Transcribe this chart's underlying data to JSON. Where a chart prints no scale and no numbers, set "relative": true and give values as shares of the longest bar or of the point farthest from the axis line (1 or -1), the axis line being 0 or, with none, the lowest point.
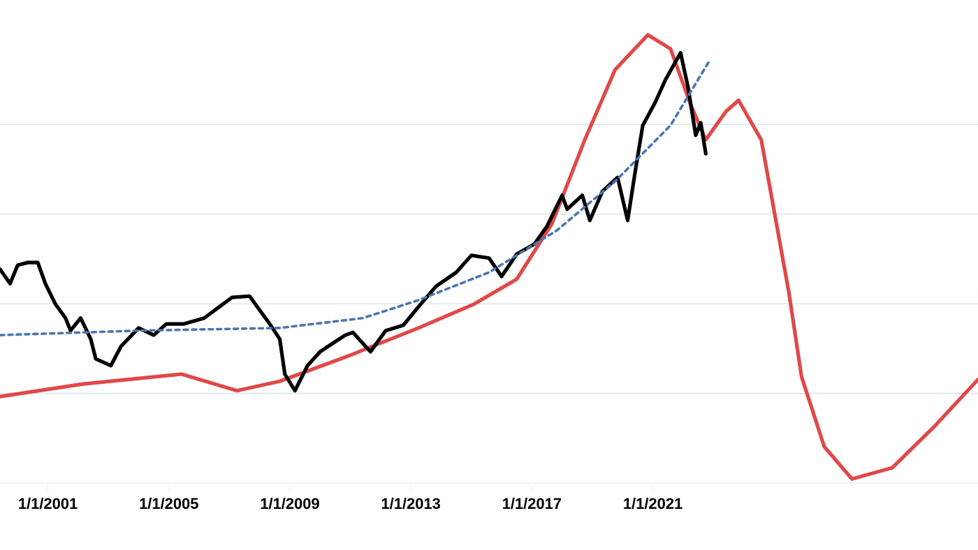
{
  "chart_data": {
    "type": "line",
    "relative": true,
    "grid": "y",
    "marker": "none",
    "xlim": [
      "1999-06",
      "2031-10"
    ],
    "xticks": [
      {
        "value": "2001-01-01",
        "label": "1/1/2001"
      },
      {
        "value": "2005-01-01",
        "label": "1/1/2005"
      },
      {
        "value": "2009-01-01",
        "label": "1/1/2009"
      },
      {
        "value": "2013-01-01",
        "label": "1/1/2013"
      },
      {
        "value": "2017-01-01",
        "label": "1/1/2017"
      },
      {
        "value": "2021-01-01",
        "label": "1/1/2021"
      }
    ],
    "series": [
      {
        "color": "#e04848",
        "line_style": "solid",
        "x": [
          "1999-06",
          "2002-03",
          "2005-06",
          "2007-04",
          "2008-09",
          "2010-12",
          "2013-04",
          "2015-02",
          "2016-07",
          "2017-09",
          "2018-10",
          "2019-10",
          "2020-11",
          "2021-08",
          "2022-04",
          "2022-10",
          "2023-06",
          "2023-11",
          "2024-08",
          "2025-01",
          "2025-07",
          "2025-12",
          "2026-09",
          "2027-08",
          "2028-12",
          "2030-05",
          "2031-10"
        ],
        "values": [
          0.193,
          0.221,
          0.243,
          0.206,
          0.227,
          0.283,
          0.346,
          0.399,
          0.455,
          0.579,
          0.766,
          0.922,
          1.0,
          0.969,
          0.844,
          0.766,
          0.829,
          0.854,
          0.766,
          0.611,
          0.424,
          0.237,
          0.081,
          0.009,
          0.034,
          0.128,
          0.231
        ]
      },
      {
        "color": "#000000",
        "line_style": "solid",
        "x": [
          "1999-06",
          "1999-10",
          "2000-01",
          "2000-05",
          "2000-09",
          "2000-12",
          "2001-04",
          "2001-08",
          "2001-10",
          "2002-02",
          "2002-06",
          "2002-08",
          "2003-02",
          "2003-06",
          "2004-01",
          "2004-07",
          "2004-12",
          "2005-07",
          "2006-03",
          "2006-09",
          "2007-02",
          "2007-09",
          "2008-01",
          "2008-05",
          "2008-09",
          "2008-11",
          "2009-03",
          "2009-08",
          "2010-01",
          "2010-05",
          "2010-11",
          "2011-02",
          "2011-09",
          "2012-03",
          "2012-10",
          "2013-04",
          "2013-11",
          "2014-07",
          "2015-01",
          "2015-08",
          "2016-01",
          "2016-07",
          "2017-02",
          "2017-07",
          "2018-01",
          "2018-03",
          "2018-09",
          "2018-12",
          "2019-05",
          "2019-11",
          "2020-03",
          "2020-06",
          "2020-09",
          "2021-02",
          "2021-06",
          "2021-12",
          "2022-03",
          "2022-06",
          "2022-08",
          "2022-10"
        ],
        "values": [
          0.477,
          0.445,
          0.486,
          0.492,
          0.492,
          0.445,
          0.399,
          0.368,
          0.34,
          0.368,
          0.321,
          0.277,
          0.262,
          0.305,
          0.346,
          0.33,
          0.355,
          0.355,
          0.368,
          0.393,
          0.414,
          0.417,
          0.386,
          0.355,
          0.321,
          0.243,
          0.206,
          0.262,
          0.293,
          0.308,
          0.33,
          0.336,
          0.293,
          0.34,
          0.352,
          0.393,
          0.439,
          0.47,
          0.508,
          0.502,
          0.461,
          0.511,
          0.533,
          0.573,
          0.642,
          0.611,
          0.642,
          0.586,
          0.651,
          0.682,
          0.586,
          0.695,
          0.798,
          0.85,
          0.9,
          0.96,
          0.882,
          0.776,
          0.804,
          0.735
        ]
      },
      {
        "color": "#4a76b0",
        "line_style": "dashed",
        "x": [
          "1999-06",
          "2004-01",
          "2008-09",
          "2011-06",
          "2013-04",
          "2015-08",
          "2017-11",
          "2019-10",
          "2021-08",
          "2022-11"
        ],
        "values": [
          0.33,
          0.34,
          0.346,
          0.368,
          0.408,
          0.47,
          0.564,
          0.673,
          0.798,
          0.938
        ]
      }
    ]
  }
}
